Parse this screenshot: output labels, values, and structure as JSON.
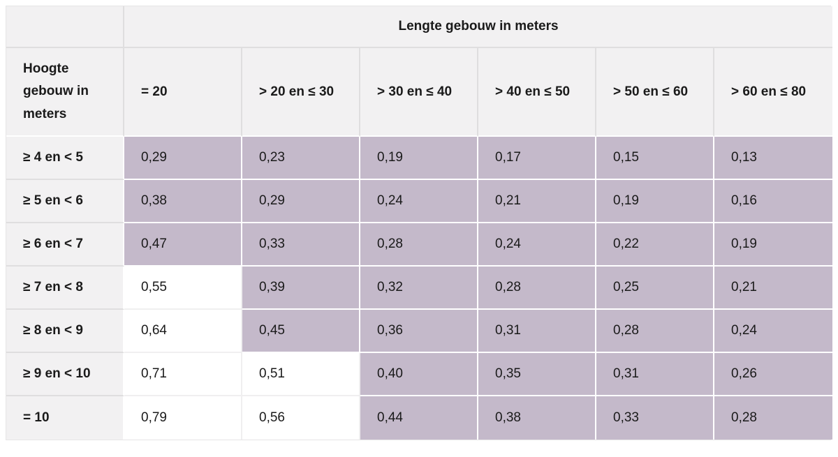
{
  "table": {
    "top_header": "Lengte gebouw in meters",
    "corner_header": "Hoogte gebouw in meters",
    "column_headers": [
      "= 20",
      "> 20 en ≤ 30",
      "> 30 en ≤ 40",
      "> 40 en ≤ 50",
      "> 50 en ≤ 60",
      "> 60 en ≤ 80"
    ],
    "rows": [
      {
        "label": "≥ 4 en < 5",
        "values": [
          "0,29",
          "0,23",
          "0,19",
          "0,17",
          "0,15",
          "0,13"
        ],
        "highlighted": [
          true,
          true,
          true,
          true,
          true,
          true
        ]
      },
      {
        "label": "≥ 5 en < 6",
        "values": [
          "0,38",
          "0,29",
          "0,24",
          "0,21",
          "0,19",
          "0,16"
        ],
        "highlighted": [
          true,
          true,
          true,
          true,
          true,
          true
        ]
      },
      {
        "label": "≥ 6 en < 7",
        "values": [
          "0,47",
          "0,33",
          "0,28",
          "0,24",
          "0,22",
          "0,19"
        ],
        "highlighted": [
          true,
          true,
          true,
          true,
          true,
          true
        ]
      },
      {
        "label": "≥ 7 en < 8",
        "values": [
          "0,55",
          "0,39",
          "0,32",
          "0,28",
          "0,25",
          "0,21"
        ],
        "highlighted": [
          false,
          true,
          true,
          true,
          true,
          true
        ]
      },
      {
        "label": "≥ 8 en < 9",
        "values": [
          "0,64",
          "0,45",
          "0,36",
          "0,31",
          "0,28",
          "0,24"
        ],
        "highlighted": [
          false,
          true,
          true,
          true,
          true,
          true
        ]
      },
      {
        "label": "≥ 9 en < 10",
        "values": [
          "0,71",
          "0,51",
          "0,40",
          "0,35",
          "0,31",
          "0,26"
        ],
        "highlighted": [
          false,
          false,
          true,
          true,
          true,
          true
        ]
      },
      {
        "label": "= 10",
        "values": [
          "0,79",
          "0,56",
          "0,44",
          "0,38",
          "0,33",
          "0,28"
        ],
        "highlighted": [
          false,
          false,
          true,
          true,
          true,
          true
        ]
      }
    ],
    "colors": {
      "highlight": "#c4b9ca",
      "header_bg": "#f2f1f2",
      "grid_line": "#dfdedf",
      "text": "#1a1a1a"
    }
  },
  "chart_data": {
    "type": "table",
    "title": "Lengte gebouw in meters",
    "row_axis_label": "Hoogte gebouw in meters",
    "columns": [
      "= 20",
      "> 20 en ≤ 30",
      "> 30 en ≤ 40",
      "> 40 en ≤ 50",
      "> 50 en ≤ 60",
      "> 60 en ≤ 80"
    ],
    "row_labels": [
      "≥ 4 en < 5",
      "≥ 5 en < 6",
      "≥ 6 en < 7",
      "≥ 7 en < 8",
      "≥ 8 en < 9",
      "≥ 9 en < 10",
      "= 10"
    ],
    "values": [
      [
        0.29,
        0.23,
        0.19,
        0.17,
        0.15,
        0.13
      ],
      [
        0.38,
        0.29,
        0.24,
        0.21,
        0.19,
        0.16
      ],
      [
        0.47,
        0.33,
        0.28,
        0.24,
        0.22,
        0.19
      ],
      [
        0.55,
        0.39,
        0.32,
        0.28,
        0.25,
        0.21
      ],
      [
        0.64,
        0.45,
        0.36,
        0.31,
        0.28,
        0.24
      ],
      [
        0.71,
        0.51,
        0.4,
        0.35,
        0.31,
        0.26
      ],
      [
        0.79,
        0.56,
        0.44,
        0.38,
        0.33,
        0.28
      ]
    ]
  }
}
